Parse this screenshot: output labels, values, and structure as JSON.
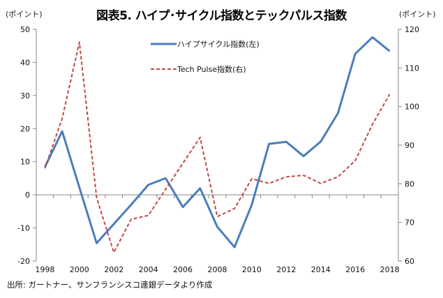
{
  "chart_data": {
    "type": "line",
    "title": "図表5. ハイプ･サイクル指数とテックパルス指数",
    "left_axis_unit": "(ポイント)",
    "right_axis_unit": "(ポイント)",
    "x": [
      1998,
      1999,
      2000,
      2001,
      2002,
      2003,
      2004,
      2005,
      2006,
      2007,
      2008,
      2009,
      2010,
      2011,
      2012,
      2013,
      2014,
      2015,
      2016,
      2017,
      2018
    ],
    "x_tick_labels": [
      "1998",
      "2000",
      "2002",
      "2004",
      "2006",
      "2008",
      "2010",
      "2012",
      "2014",
      "2016",
      "2018"
    ],
    "ylim_left": [
      -20,
      50
    ],
    "yticks_left": [
      "50",
      "40",
      "30",
      "20",
      "10",
      "0",
      "-10",
      "-20"
    ],
    "ylim_right": [
      60,
      120
    ],
    "yticks_right": [
      "120",
      "110",
      "100",
      "90",
      "80",
      "70",
      "60"
    ],
    "grid": false,
    "legend_position": "top-center",
    "series": [
      {
        "name": "ハイプサイクル指数(左)",
        "axis": "left",
        "color": "#4a7ebb",
        "style": "solid",
        "values": [
          8.4,
          19.2,
          2.2,
          -14.6,
          -8.8,
          -3.0,
          3.0,
          5.0,
          -3.7,
          2.0,
          -9.7,
          -15.8,
          -3.0,
          15.4,
          16.0,
          11.7,
          16.1,
          24.7,
          42.6,
          47.6,
          43.4
        ]
      },
      {
        "name": "Tech Pulse指数(右)",
        "axis": "right",
        "color": "#be4b48",
        "style": "dashed",
        "values": [
          84.0,
          96.9,
          116.7,
          76.4,
          62.2,
          70.8,
          71.8,
          78.6,
          85.3,
          92.0,
          71.5,
          73.6,
          81.3,
          80.1,
          81.8,
          82.2,
          80.1,
          81.8,
          86.0,
          95.4,
          103.2
        ]
      }
    ]
  },
  "source_note": "出所:  ガートナー、サンフランシスコ連銀データより作成"
}
